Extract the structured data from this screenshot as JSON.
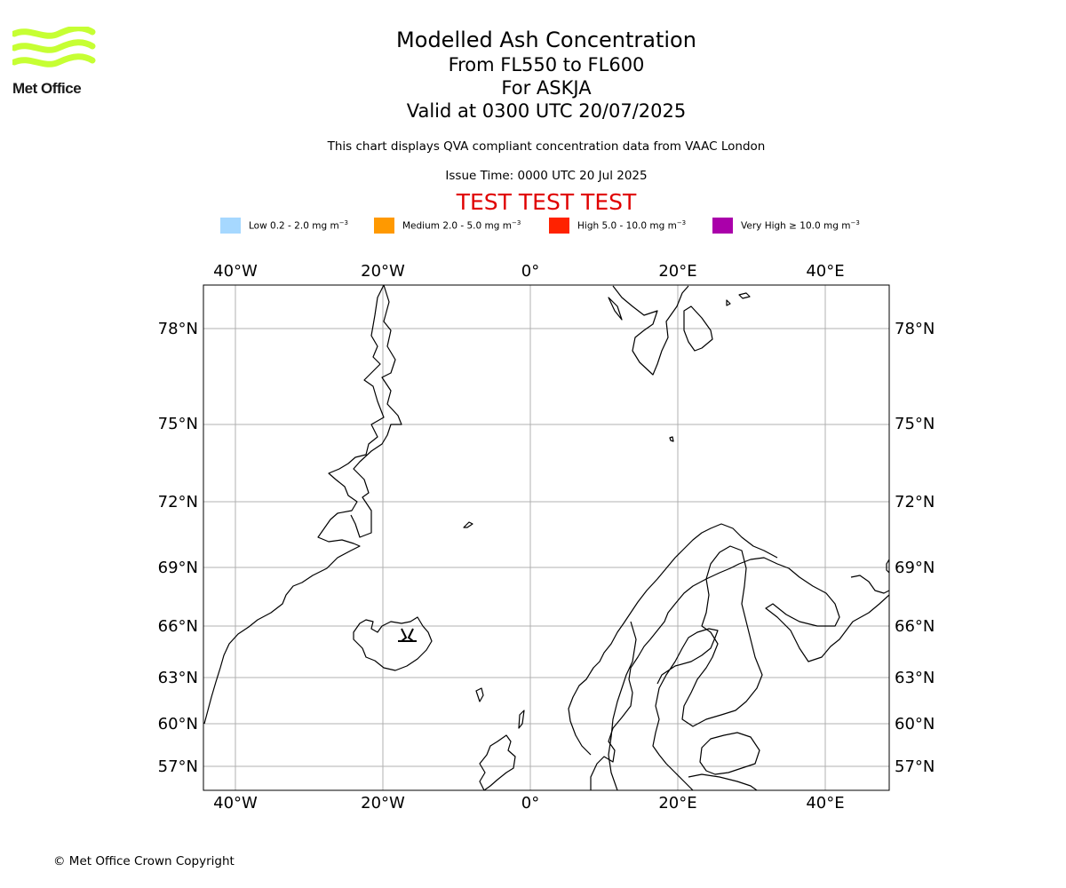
{
  "logo": {
    "text": "Met Office",
    "color": "#c6ff33"
  },
  "title": {
    "main": "Modelled Ash Concentration",
    "levels": "From FL550 to FL600",
    "volcano": "For ASKJA",
    "valid": "Valid at 0300 UTC 20/07/2025"
  },
  "description": "This chart displays QVA compliant concentration data from VAAC London",
  "issue_time": "Issue Time: 0000 UTC 20 Jul 2025",
  "test_banner": "TEST TEST TEST",
  "legend": [
    {
      "label": "Low 0.2 - 2.0 mg m",
      "unit_sup": "−3",
      "color": "#a6d8ff"
    },
    {
      "label": "Medium 2.0 - 5.0 mg m",
      "unit_sup": "−3",
      "color": "#ff9900"
    },
    {
      "label": "High 5.0 - 10.0 mg m",
      "unit_sup": "−3",
      "color": "#ff2200"
    },
    {
      "label": "Very High  ≥  10.0 mg m",
      "unit_sup": "−3",
      "color": "#aa00aa"
    }
  ],
  "map": {
    "lon_ticks": [
      "40°W",
      "20°W",
      "0°",
      "20°E",
      "40°E"
    ],
    "lat_ticks": [
      "78°N",
      "75°N",
      "72°N",
      "69°N",
      "66°N",
      "63°N",
      "60°N",
      "57°N"
    ],
    "gridline_color": "#b0b0b0",
    "volcano_symbol": "volcano-icon",
    "volcano_name": "ASKJA"
  },
  "copyright": "© Met Office Crown Copyright"
}
